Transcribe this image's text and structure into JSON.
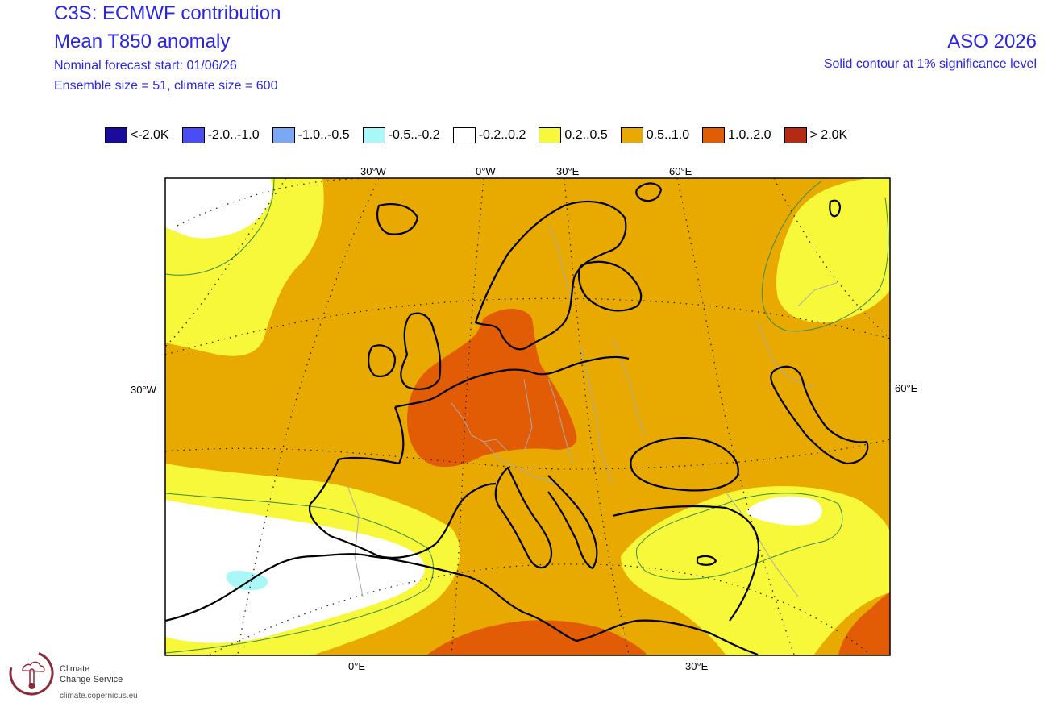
{
  "header": {
    "title1": "C3S: ECMWF contribution",
    "title2": "Mean T850 anomaly",
    "line3": "Nominal forecast start: 01/06/26",
    "line4": "Ensemble size = 51, climate size = 600",
    "period": "ASO 2026",
    "significance": "Solid contour at 1% significance level"
  },
  "legend": [
    {
      "label": "<-2.0K",
      "color": "#1b0b9c"
    },
    {
      "label": "-2.0..-1.0",
      "color": "#4a4cf5"
    },
    {
      "label": "-1.0..-0.5",
      "color": "#7aa8f5"
    },
    {
      "label": "-0.5..-0.2",
      "color": "#a9f7f7"
    },
    {
      "label": "-0.2..0.2",
      "color": "#ffffff"
    },
    {
      "label": "0.2..0.5",
      "color": "#f8f83a"
    },
    {
      "label": "0.5..1.0",
      "color": "#e8a900"
    },
    {
      "label": "1.0..2.0",
      "color": "#e25c05"
    },
    {
      "label": "> 2.0K",
      "color": "#b52a12"
    }
  ],
  "map_labels": {
    "top": [
      "30°W",
      "0°W",
      "30°E",
      "60°E"
    ],
    "left": "30°W",
    "right": "60°E",
    "bottom": [
      "0°E",
      "30°E"
    ]
  },
  "logo": {
    "line1": "Climate",
    "line2": "Change Service",
    "url": "climate.copernicus.eu"
  }
}
